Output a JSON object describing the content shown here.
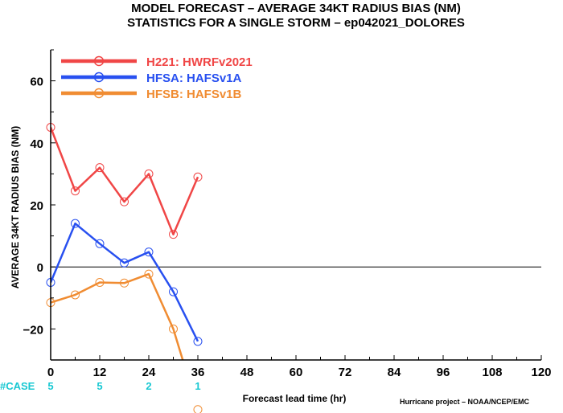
{
  "title_line1": "MODEL FORECAST – AVERAGE 34KT RADIUS BIAS (NM)",
  "title_line2": "STATISTICS FOR A SINGLE STORM – ep042021_DOLORES",
  "credit": "Hurricane project – NOAA/NCEP/EMC",
  "case_label": "#CASE",
  "case_color": "#19c8d2",
  "cases": [
    {
      "x": 0,
      "label": "5"
    },
    {
      "x": 12,
      "label": "5"
    },
    {
      "x": 24,
      "label": "2"
    },
    {
      "x": 36,
      "label": "1"
    }
  ],
  "chart_data": {
    "type": "line",
    "title": "MODEL FORECAST – AVERAGE 34KT RADIUS BIAS (NM)",
    "subtitle": "STATISTICS FOR A SINGLE STORM – ep042021_DOLORES",
    "xlabel": "Forecast lead time (hr)",
    "ylabel": "AVERAGE 34KT RADIUS BIAS (NM)",
    "xlim": [
      0,
      120
    ],
    "ylim": [
      -30,
      70
    ],
    "xticks": [
      0,
      12,
      24,
      36,
      48,
      60,
      72,
      84,
      96,
      108,
      120
    ],
    "yticks": [
      -20,
      0,
      20,
      40,
      60
    ],
    "zero_line": true,
    "legend_position": "top-left",
    "series": [
      {
        "name": "H221: HWRFv2021",
        "color": "#f04646",
        "x": [
          0,
          6,
          12,
          18,
          24,
          30,
          36
        ],
        "y": [
          45,
          24.5,
          32,
          21,
          30,
          10.5,
          29
        ]
      },
      {
        "name": "HFSA: HAFSv1A",
        "color": "#2850f0",
        "x": [
          0,
          6,
          12,
          18,
          24,
          30,
          36
        ],
        "y": [
          -5,
          14,
          7.5,
          1.3,
          4.8,
          -8,
          -24
        ]
      },
      {
        "name": "HFSB: HAFSv1B",
        "color": "#f08c32",
        "x": [
          0,
          6,
          12,
          18,
          24,
          30,
          36
        ],
        "y": [
          -11.5,
          -9,
          -5,
          -5.2,
          -2.3,
          -20,
          -46
        ]
      }
    ]
  }
}
